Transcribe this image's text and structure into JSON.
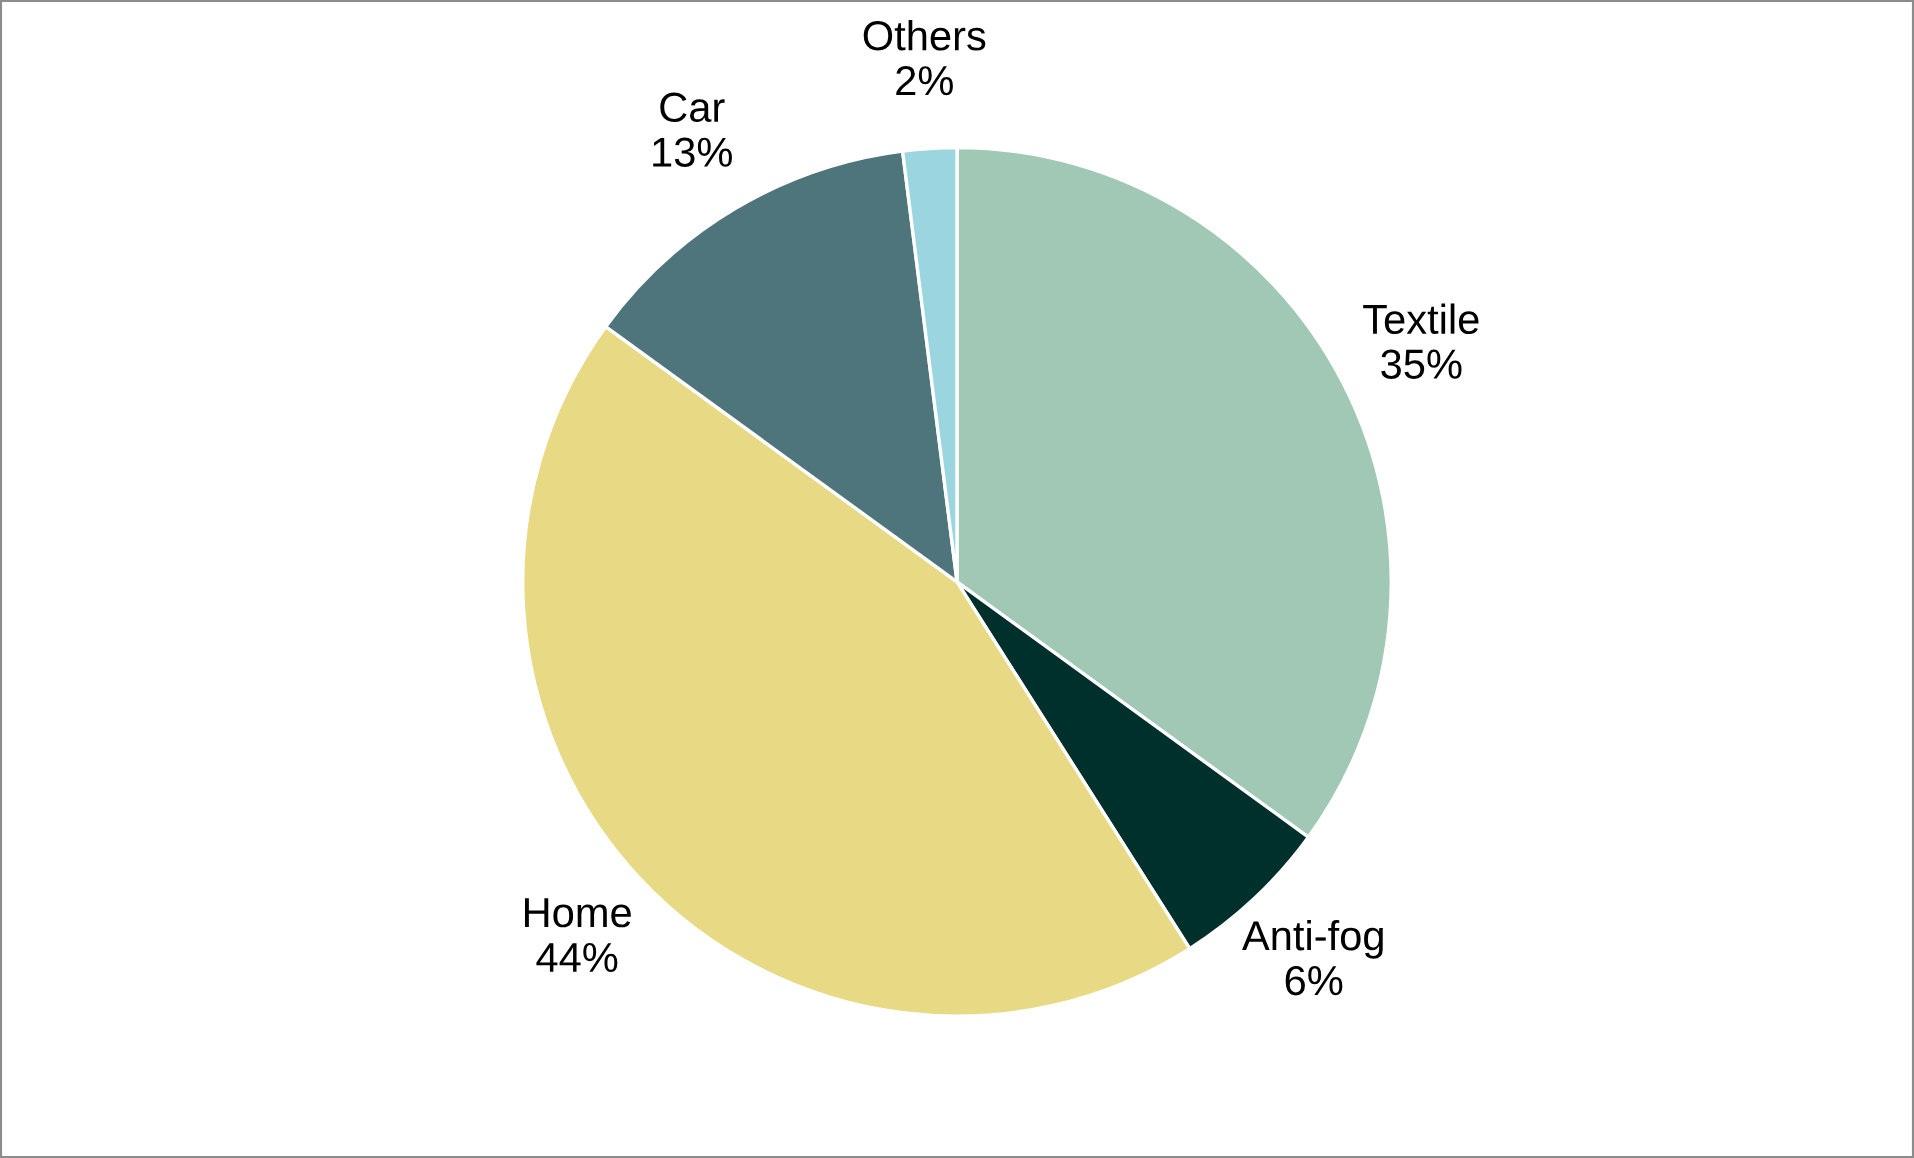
{
  "chart_data": {
    "type": "pie",
    "categories": [
      "Textile",
      "Anti-fog",
      "Home",
      "Car",
      "Others"
    ],
    "values": [
      35,
      6,
      44,
      13,
      2
    ],
    "value_labels": [
      "35%",
      "6%",
      "44%",
      "13%",
      "2%"
    ],
    "colors": [
      "#a0c8b5",
      "#00302b",
      "#e8d984",
      "#4e757b",
      "#9bd6e0"
    ],
    "legend": false
  }
}
